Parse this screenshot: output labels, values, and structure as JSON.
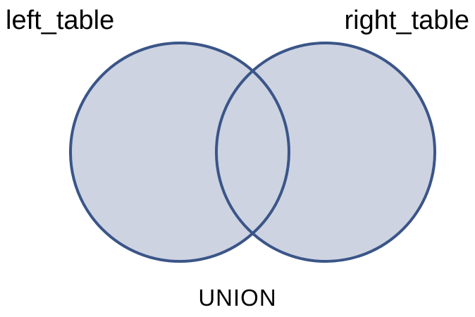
{
  "diagram": {
    "left_label": "left_table",
    "right_label": "right_table",
    "caption": "UNION"
  },
  "colors": {
    "fill": "#cdd3e1",
    "stroke": "#3b5588",
    "text": "#000000"
  }
}
